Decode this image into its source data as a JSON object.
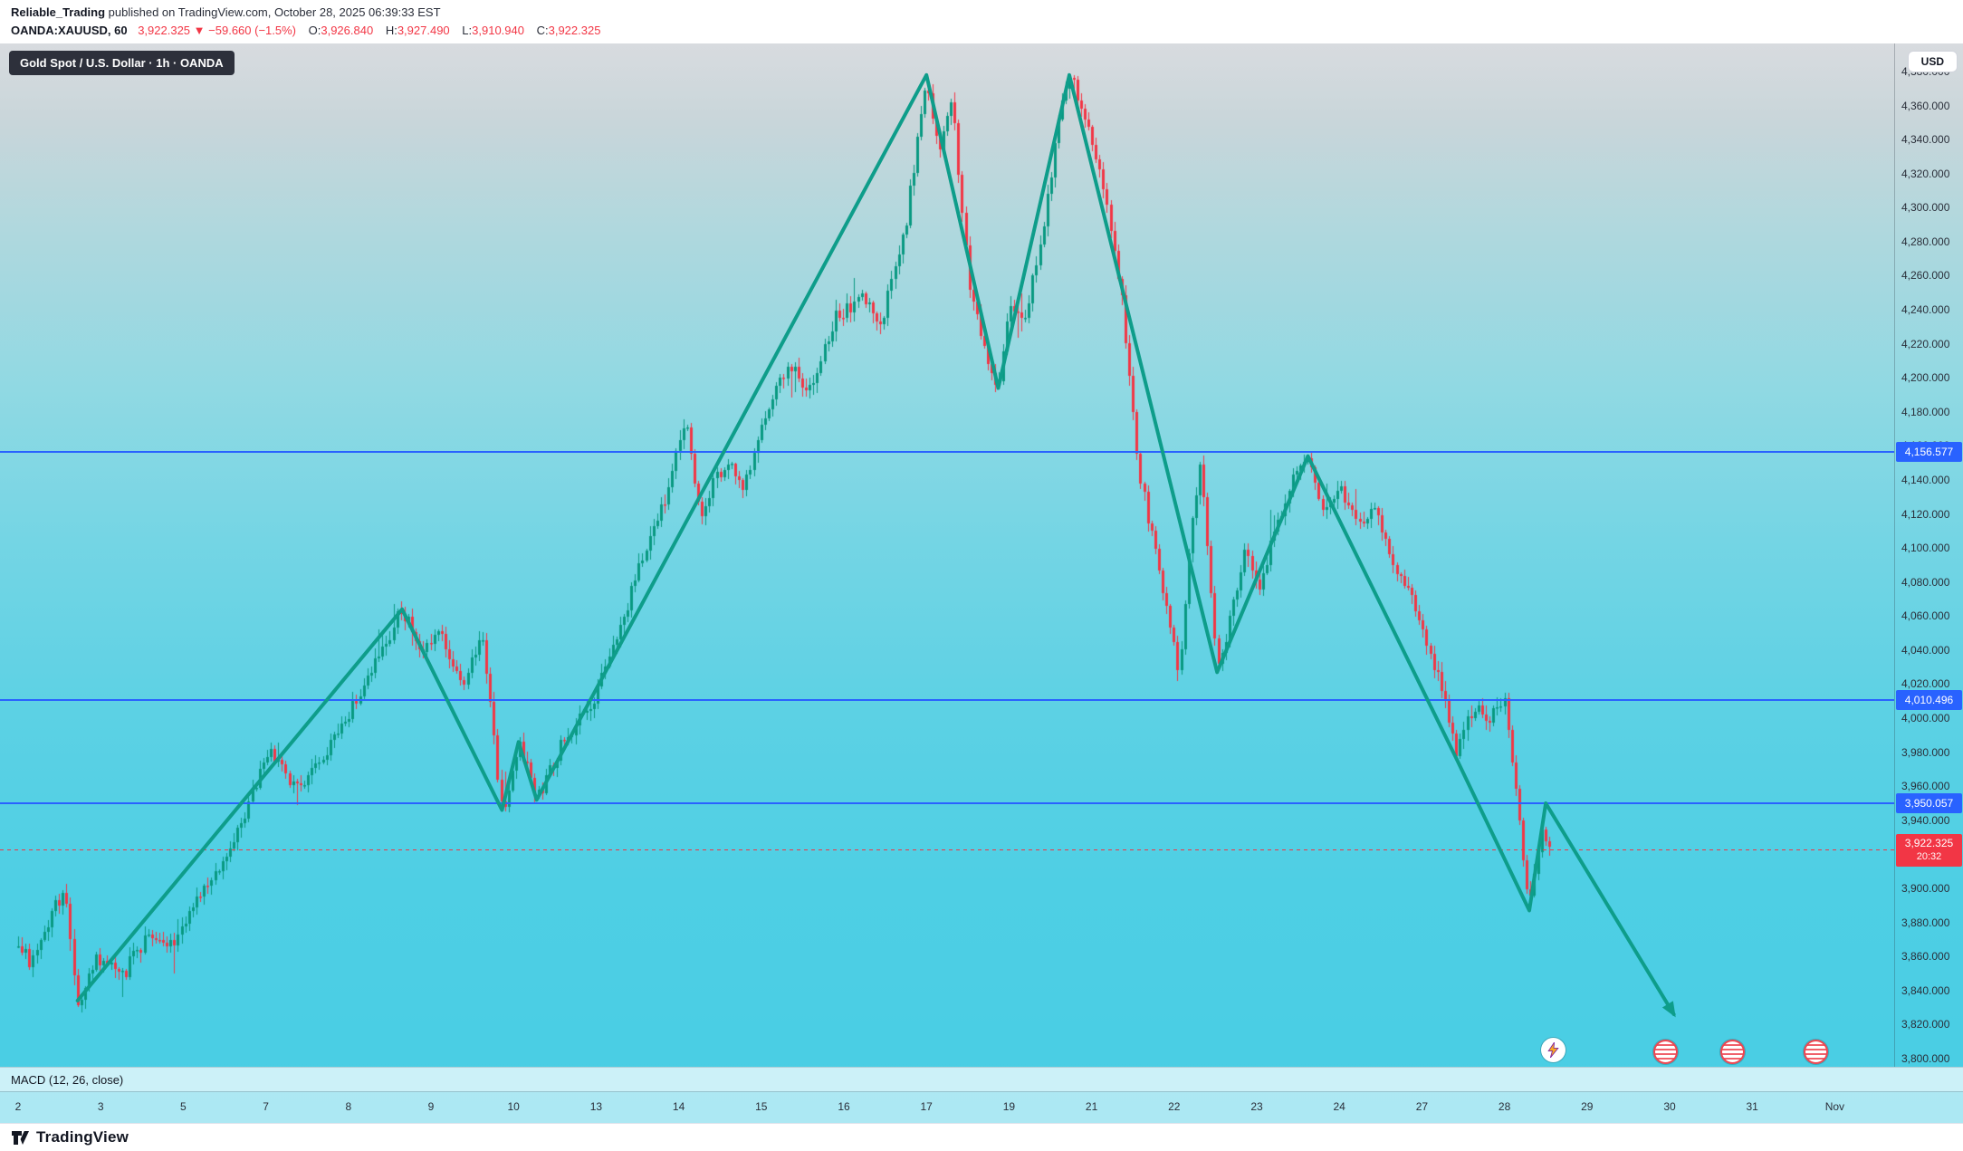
{
  "header": {
    "publisher": "Reliable_Trading",
    "published_text": " published on TradingView.com, October 28, 2025 06:39:33 EST",
    "symbol_line": {
      "symbol": "OANDA:XAUUSD, 60",
      "last_price": "3,922.325",
      "change": "▼ −59.660 (−1.5%)",
      "open_label": "O:",
      "open": "3,926.840",
      "high_label": "H:",
      "high": "3,927.490",
      "low_label": "L:",
      "low": "3,910.940",
      "close_label": "C:",
      "close": "3,922.325"
    }
  },
  "chart": {
    "legend": "Gold Spot / U.S. Dollar · 1h · OANDA",
    "currency_button": "USD",
    "macd_label": "MACD (12, 26, close)",
    "current_price_badge": {
      "price": "3,922.325",
      "countdown": "20:32"
    },
    "price_levels": [
      {
        "label": "4,156.577",
        "value": 4156.577
      },
      {
        "label": "4,010.496",
        "value": 4010.496
      },
      {
        "label": "3,950.057",
        "value": 3950.057
      }
    ],
    "stickers": [
      {
        "icon": "lightning-sticker"
      },
      {
        "icon": "red-striped-sticker"
      },
      {
        "icon": "red-striped-sticker"
      },
      {
        "icon": "red-striped-sticker"
      }
    ]
  },
  "footer": {
    "brand": "TradingView"
  },
  "chart_data": {
    "type": "candlestick",
    "symbol": "OANDA:XAUUSD",
    "timeframe": "1h",
    "title": "Gold Spot / U.S. Dollar · 1h · OANDA",
    "ohlc": {
      "open": 3926.84,
      "high": 3927.49,
      "low": 3910.94,
      "close": 3922.325
    },
    "change": -59.66,
    "change_pct": -1.5,
    "last_price": 3922.325,
    "y_axis": {
      "min": 3800,
      "max": 4380,
      "tick_step": 20,
      "currency": "USD"
    },
    "x_axis": {
      "labels": [
        "2",
        "3",
        "5",
        "7",
        "8",
        "9",
        "10",
        "13",
        "14",
        "15",
        "16",
        "17",
        "19",
        "21",
        "22",
        "23",
        "24",
        "27",
        "28",
        "29",
        "30",
        "31",
        "Nov"
      ]
    },
    "colors": {
      "up": "#089981",
      "down": "#f23645",
      "level_line": "#2962ff",
      "last_price_line": "#f23645",
      "trend_line": "#0e9d8a"
    },
    "horizontal_levels": [
      4156.577,
      4010.496,
      3950.057
    ],
    "price_swings": [
      [
        0.0,
        3868
      ],
      [
        0.15,
        3856
      ],
      [
        0.35,
        3880
      ],
      [
        0.52,
        3896
      ],
      [
        0.58,
        3890
      ],
      [
        0.72,
        3834
      ],
      [
        0.95,
        3858
      ],
      [
        1.3,
        3852
      ],
      [
        1.6,
        3874
      ],
      [
        1.9,
        3866
      ],
      [
        2.2,
        3896
      ],
      [
        2.5,
        3916
      ],
      [
        2.8,
        3952
      ],
      [
        3.05,
        3984
      ],
      [
        3.3,
        3958
      ],
      [
        3.6,
        3970
      ],
      [
        3.95,
        3996
      ],
      [
        4.3,
        4030
      ],
      [
        4.65,
        4064
      ],
      [
        4.9,
        4038
      ],
      [
        5.1,
        4052
      ],
      [
        5.35,
        4018
      ],
      [
        5.62,
        4048
      ],
      [
        5.86,
        3944
      ],
      [
        6.06,
        3988
      ],
      [
        6.28,
        3952
      ],
      [
        6.6,
        3986
      ],
      [
        6.95,
        4010
      ],
      [
        7.25,
        4048
      ],
      [
        7.55,
        4092
      ],
      [
        7.85,
        4130
      ],
      [
        8.08,
        4178
      ],
      [
        8.25,
        4120
      ],
      [
        8.55,
        4150
      ],
      [
        8.8,
        4136
      ],
      [
        9.1,
        4186
      ],
      [
        9.35,
        4206
      ],
      [
        9.6,
        4192
      ],
      [
        9.9,
        4236
      ],
      [
        10.2,
        4246
      ],
      [
        10.45,
        4232
      ],
      [
        10.75,
        4292
      ],
      [
        11.0,
        4378
      ],
      [
        11.15,
        4332
      ],
      [
        11.3,
        4366
      ],
      [
        11.52,
        4256
      ],
      [
        11.72,
        4212
      ],
      [
        11.87,
        4196
      ],
      [
        12.02,
        4246
      ],
      [
        12.18,
        4228
      ],
      [
        12.42,
        4292
      ],
      [
        12.6,
        4350
      ],
      [
        12.73,
        4378
      ],
      [
        12.92,
        4354
      ],
      [
        13.12,
        4318
      ],
      [
        13.36,
        4248
      ],
      [
        13.56,
        4150
      ],
      [
        13.76,
        4098
      ],
      [
        13.92,
        4058
      ],
      [
        14.06,
        4028
      ],
      [
        14.22,
        4120
      ],
      [
        14.32,
        4152
      ],
      [
        14.52,
        4028
      ],
      [
        14.72,
        4068
      ],
      [
        14.86,
        4102
      ],
      [
        15.02,
        4072
      ],
      [
        15.22,
        4112
      ],
      [
        15.46,
        4142
      ],
      [
        15.62,
        4150
      ],
      [
        15.82,
        4120
      ],
      [
        16.02,
        4136
      ],
      [
        16.22,
        4110
      ],
      [
        16.42,
        4128
      ],
      [
        16.62,
        4094
      ],
      [
        16.82,
        4076
      ],
      [
        17.02,
        4052
      ],
      [
        17.22,
        4020
      ],
      [
        17.42,
        3978
      ],
      [
        17.62,
        4008
      ],
      [
        17.8,
        3998
      ],
      [
        18.0,
        4012
      ],
      [
        18.14,
        3958
      ],
      [
        18.3,
        3888
      ],
      [
        18.44,
        3934
      ],
      [
        18.55,
        3922
      ]
    ],
    "trend_line": {
      "arrow_end": true,
      "points": [
        [
          0.72,
          3834
        ],
        [
          4.65,
          4064
        ],
        [
          5.86,
          3946
        ],
        [
          6.06,
          3986
        ],
        [
          6.28,
          3952
        ],
        [
          11.0,
          4378
        ],
        [
          11.87,
          4194
        ],
        [
          12.73,
          4378
        ],
        [
          14.52,
          4027
        ],
        [
          15.62,
          4154
        ],
        [
          17.42,
          3976
        ],
        [
          18.3,
          3887
        ],
        [
          18.5,
          3950
        ],
        [
          20.05,
          3826
        ]
      ]
    }
  }
}
